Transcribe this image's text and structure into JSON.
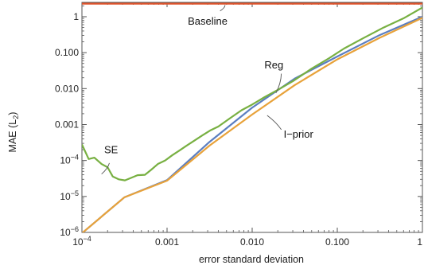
{
  "chart_data": {
    "type": "line",
    "title": "",
    "xlabel": "error standard deviation",
    "ylabel": "MAE (L",
    "ylabel_sub": "2",
    "ylabel_close": ")",
    "xscale": "log",
    "yscale": "log",
    "xlim": [
      0.0001,
      1
    ],
    "ylim": [
      1e-06,
      2.5
    ],
    "grid": false,
    "x_ticks": [
      {
        "value": 0.0001,
        "base": "10",
        "exp": "−4",
        "text": ""
      },
      {
        "value": 0.001,
        "text": "0.001"
      },
      {
        "value": 0.01,
        "text": "0.010"
      },
      {
        "value": 0.1,
        "text": "0.100"
      },
      {
        "value": 1,
        "text": "1"
      }
    ],
    "y_ticks": [
      {
        "value": 1e-06,
        "base": "10",
        "exp": "−6",
        "text": ""
      },
      {
        "value": 1e-05,
        "base": "10",
        "exp": "−5",
        "text": ""
      },
      {
        "value": 0.0001,
        "base": "10",
        "exp": "−4",
        "text": ""
      },
      {
        "value": 0.001,
        "text": "0.001"
      },
      {
        "value": 0.01,
        "text": "0.010"
      },
      {
        "value": 0.1,
        "text": "0.100"
      },
      {
        "value": 1,
        "text": "1"
      }
    ],
    "series": [
      {
        "name": "Baseline",
        "color": "#e0542c",
        "x": [
          0.0001,
          0.001,
          0.01,
          0.1,
          1
        ],
        "y": [
          2.3,
          2.3,
          2.3,
          2.3,
          2.3
        ],
        "label_at": [
          0.003,
          0.6
        ]
      },
      {
        "name": "Reg",
        "color": "#5b7ec0",
        "x": [
          0.0001,
          0.000316,
          0.001,
          0.00316,
          0.01,
          0.0316,
          0.1,
          0.316,
          1
        ],
        "y": [
          9.5e-07,
          9.5e-06,
          2.85e-05,
          0.00033,
          0.00295,
          0.019,
          0.078,
          0.31,
          1.0
        ],
        "label_at": [
          0.018,
          0.036
        ]
      },
      {
        "name": "SE",
        "color": "#78b042",
        "x": [
          0.0001,
          0.00012,
          0.00014,
          0.00017,
          0.0002,
          0.00023,
          0.00027,
          0.00032,
          0.00038,
          0.00045,
          0.00055,
          0.00065,
          0.00078,
          0.00095,
          0.00115,
          0.0014,
          0.0017,
          0.0021,
          0.0026,
          0.0032,
          0.004,
          0.0055,
          0.0075,
          0.01,
          0.014,
          0.02,
          0.03,
          0.05,
          0.08,
          0.12,
          0.2,
          0.35,
          0.6,
          1
        ],
        "y": [
          0.00028,
          0.00011,
          0.00012,
          8e-05,
          6.5e-05,
          3.6e-05,
          3e-05,
          2.8e-05,
          3.3e-05,
          3.9e-05,
          4e-05,
          5.5e-05,
          8e-05,
          0.0001,
          0.00014,
          0.00019,
          0.00026,
          0.00036,
          0.0005,
          0.00068,
          0.00088,
          0.0015,
          0.0025,
          0.0036,
          0.0058,
          0.0092,
          0.016,
          0.036,
          0.07,
          0.13,
          0.25,
          0.5,
          0.9,
          1.8
        ],
        "label_at": [
          0.00022,
          0.00016
        ]
      },
      {
        "name": "I−prior",
        "color": "#e8a23a",
        "x": [
          0.0001,
          0.000316,
          0.001,
          0.00316,
          0.01,
          0.0316,
          0.1,
          0.316,
          1
        ],
        "y": [
          9.5e-07,
          9.5e-06,
          2.75e-05,
          0.00026,
          0.0019,
          0.0125,
          0.065,
          0.26,
          0.93
        ],
        "label_at": [
          0.035,
          0.00043
        ]
      }
    ],
    "legend": "none"
  }
}
